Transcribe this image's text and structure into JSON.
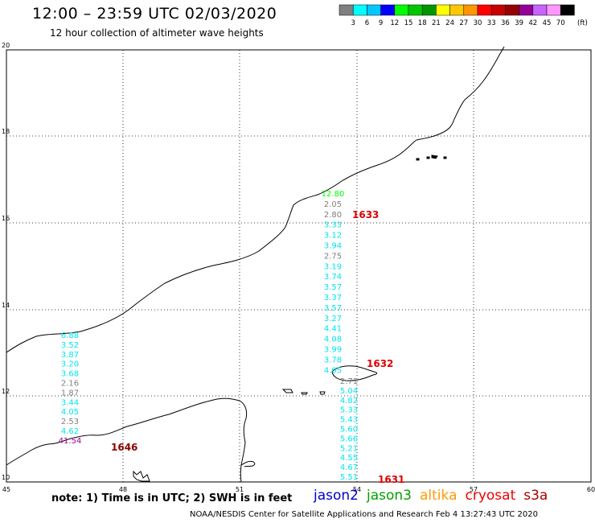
{
  "header": {
    "title": "12:00 – 23:59 UTC 02/03/2020",
    "subtitle": "12 hour collection of altimeter wave heights"
  },
  "colorbar": {
    "labels": [
      "3",
      "6",
      "9",
      "12",
      "15",
      "18",
      "21",
      "24",
      "27",
      "30",
      "33",
      "36",
      "39",
      "42",
      "45",
      "70"
    ],
    "unit": "(ft)",
    "colors": [
      "#808080",
      "#00ffff",
      "#00c8ff",
      "#0000ff",
      "#00ff00",
      "#00c800",
      "#009600",
      "#ffff00",
      "#ffc800",
      "#ff9600",
      "#ff0000",
      "#c80000",
      "#960000",
      "#960096",
      "#c864ff",
      "#ff96ff",
      "#000000"
    ]
  },
  "axes": {
    "x_ticks": [
      "45",
      "48",
      "51",
      "54",
      "57",
      "60"
    ],
    "y_ticks": [
      "20",
      "18",
      "16",
      "14",
      "12",
      "10"
    ]
  },
  "satellites": [
    {
      "name": "jason2",
      "color": "#0000cc"
    },
    {
      "name": "jason3",
      "color": "#00a000"
    },
    {
      "name": "altika",
      "color": "#ff9900"
    },
    {
      "name": "cryosat",
      "color": "#ee0000"
    },
    {
      "name": "s3a",
      "color": "#aa0000"
    }
  ],
  "tracks": [
    {
      "time_label": "1633",
      "time_color": "#dd0000",
      "readings": [
        {
          "v": "12.80",
          "c": "#00ff00"
        },
        {
          "v": "2.05",
          "c": "#808080"
        },
        {
          "v": "2.80",
          "c": "#808080"
        },
        {
          "v": "3.33",
          "c": "#00e5ee"
        },
        {
          "v": "3.12",
          "c": "#00e5ee"
        },
        {
          "v": "3.94",
          "c": "#00e5ee"
        },
        {
          "v": "2.75",
          "c": "#808080"
        },
        {
          "v": "3.19",
          "c": "#00e5ee"
        },
        {
          "v": "3.74",
          "c": "#00e5ee"
        },
        {
          "v": "3.57",
          "c": "#00e5ee"
        },
        {
          "v": "3.37",
          "c": "#00e5ee"
        },
        {
          "v": "3.57",
          "c": "#00e5ee"
        },
        {
          "v": "3.27",
          "c": "#00e5ee"
        },
        {
          "v": "4.41",
          "c": "#00e5ee"
        },
        {
          "v": "4.08",
          "c": "#00e5ee"
        },
        {
          "v": "3.99",
          "c": "#00e5ee"
        },
        {
          "v": "3.78",
          "c": "#00e5ee"
        },
        {
          "v": "4.05",
          "c": "#00e5ee"
        }
      ]
    },
    {
      "time_label": "1632",
      "time_color": "#dd0000",
      "readings": [
        {
          "v": "2.71",
          "c": "#808080"
        },
        {
          "v": "5.04",
          "c": "#00e5ee"
        },
        {
          "v": "4.82",
          "c": "#00e5ee"
        },
        {
          "v": "5.33",
          "c": "#00e5ee"
        },
        {
          "v": "5.43",
          "c": "#00e5ee"
        },
        {
          "v": "5.60",
          "c": "#00e5ee"
        },
        {
          "v": "5.66",
          "c": "#00e5ee"
        },
        {
          "v": "5.21",
          "c": "#00e5ee"
        },
        {
          "v": "4.55",
          "c": "#00e5ee"
        },
        {
          "v": "4.67",
          "c": "#00e5ee"
        },
        {
          "v": "5.51",
          "c": "#00e5ee"
        }
      ]
    },
    {
      "time_label": "1631",
      "time_color": "#dd0000"
    },
    {
      "time_label": "1646",
      "time_color": "#8b0000",
      "readings": [
        {
          "v": "6.88",
          "c": "#00e5ee"
        },
        {
          "v": "3.52",
          "c": "#00e5ee"
        },
        {
          "v": "3.87",
          "c": "#00e5ee"
        },
        {
          "v": "3.20",
          "c": "#00e5ee"
        },
        {
          "v": "3.68",
          "c": "#00e5ee"
        },
        {
          "v": "2.16",
          "c": "#808080"
        },
        {
          "v": "1.87",
          "c": "#808080"
        },
        {
          "v": "3.44",
          "c": "#00e5ee"
        },
        {
          "v": "4.05",
          "c": "#00e5ee"
        },
        {
          "v": "2.53",
          "c": "#808080"
        },
        {
          "v": "4.62",
          "c": "#00e5ee"
        },
        {
          "v": "41.54",
          "c": "#990099"
        }
      ]
    }
  ],
  "note": "note: 1) Time is in UTC; 2) SWH is in feet",
  "footer": "NOAA/NESDIS Center for Satellite Applications and Research    Feb  4 13:27:43 UTC 2020"
}
